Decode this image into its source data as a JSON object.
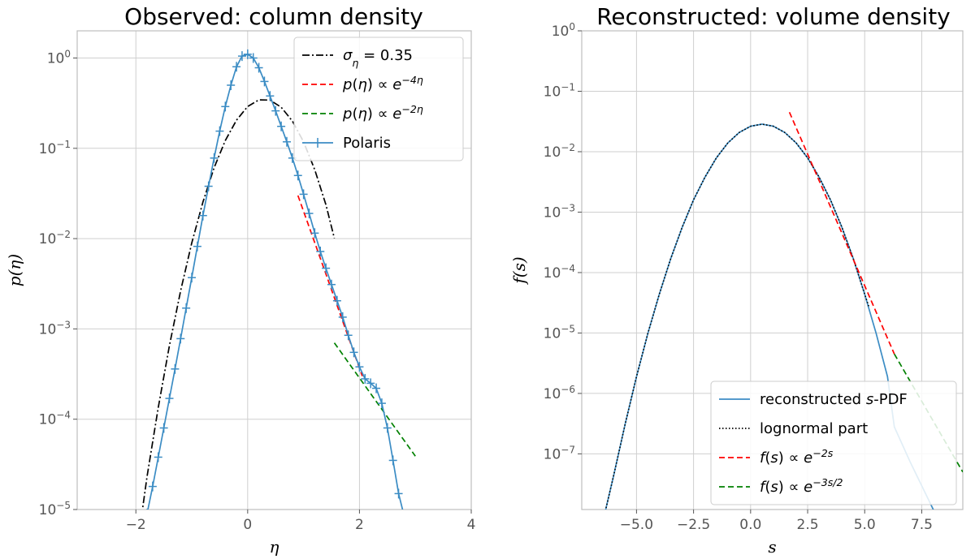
{
  "chart_data": [
    {
      "type": "line",
      "title": "Observed: column density",
      "xlabel": "η",
      "ylabel": "p(η)",
      "yscale": "log",
      "xlim": [
        -3.05,
        4.0
      ],
      "ylim": [
        1e-05,
        2.0
      ],
      "xticks": [
        -2,
        0,
        2,
        4
      ],
      "xtick_labels": [
        "−2",
        "0",
        "2",
        "4"
      ],
      "yticks": [
        1e-05,
        0.0001,
        0.001,
        0.01,
        0.1,
        1
      ],
      "ytick_labels": [
        {
          "base": "10",
          "exp": "−5"
        },
        {
          "base": "10",
          "exp": "−4"
        },
        {
          "base": "10",
          "exp": "−3"
        },
        {
          "base": "10",
          "exp": "−2"
        },
        {
          "base": "10",
          "exp": "−1"
        },
        {
          "base": "10",
          "exp": "0"
        }
      ],
      "grid": true,
      "legend_position": "top-right",
      "series": [
        {
          "name": "σ_η = 0.35",
          "legend": {
            "parts": [
              {
                "t": "σ",
                "i": true
              },
              {
                "t": "η",
                "sub": true,
                "i": true
              },
              {
                "t": " = 0.35"
              }
            ]
          },
          "style": "dashdot",
          "color": "#000000",
          "x": [
            -1.9,
            -1.8,
            -1.6,
            -1.4,
            -1.2,
            -1.0,
            -0.8,
            -0.6,
            -0.4,
            -0.2,
            0.0,
            0.2,
            0.4,
            0.6,
            0.8,
            1.0,
            1.2,
            1.4,
            1.55
          ],
          "y": [
            8.3e-06,
            2.32e-05,
            0.000135,
            0.000652,
            0.00264,
            0.00895,
            0.0255,
            0.0609,
            0.122,
            0.205,
            0.29,
            0.344,
            0.342,
            0.285,
            0.2,
            0.118,
            0.0579,
            0.0238,
            0.0101
          ]
        },
        {
          "name": "p(η) ∝ e^{−4η}",
          "legend": {
            "parts": [
              {
                "t": "p",
                "i": true
              },
              {
                "t": "("
              },
              {
                "t": "η",
                "i": true
              },
              {
                "t": ") ∝ "
              },
              {
                "t": "e",
                "i": true
              },
              {
                "t": "−4η",
                "sup": true,
                "i": true
              }
            ]
          },
          "style": "dashed",
          "color": "#ff0000",
          "x": [
            0.9,
            2.05
          ],
          "y": [
            0.03,
            0.0003
          ]
        },
        {
          "name": "p(η) ∝ e^{−2η}",
          "legend": {
            "parts": [
              {
                "t": "p",
                "i": true
              },
              {
                "t": "("
              },
              {
                "t": "η",
                "i": true
              },
              {
                "t": ") ∝ "
              },
              {
                "t": "e",
                "i": true
              },
              {
                "t": "−2η",
                "sup": true,
                "i": true
              }
            ]
          },
          "style": "dashed",
          "color": "#008000",
          "x": [
            1.55,
            3.0
          ],
          "y": [
            0.0007,
            3.9e-05
          ]
        },
        {
          "name": "Polaris",
          "legend": {
            "parts": [
              {
                "t": "Polaris"
              }
            ]
          },
          "style": "solid-errorbar",
          "color": "#3b8cc4",
          "x": [
            -1.8,
            -1.7,
            -1.6,
            -1.5,
            -1.4,
            -1.3,
            -1.2,
            -1.1,
            -1.0,
            -0.9,
            -0.8,
            -0.7,
            -0.6,
            -0.5,
            -0.4,
            -0.3,
            -0.2,
            -0.1,
            0.0,
            0.1,
            0.2,
            0.3,
            0.4,
            0.5,
            0.6,
            0.7,
            0.8,
            0.9,
            1.0,
            1.1,
            1.2,
            1.3,
            1.4,
            1.5,
            1.6,
            1.7,
            1.8,
            1.9,
            2.0,
            2.1,
            2.2,
            2.3,
            2.4,
            2.5,
            2.6,
            2.7,
            2.8
          ],
          "y": [
            9e-06,
            1.8e-05,
            3.8e-05,
            8e-05,
            0.00017,
            0.00036,
            0.00078,
            0.0017,
            0.0037,
            0.0082,
            0.018,
            0.038,
            0.078,
            0.155,
            0.29,
            0.5,
            0.8,
            1.05,
            1.1,
            1.0,
            0.78,
            0.55,
            0.38,
            0.26,
            0.175,
            0.118,
            0.078,
            0.05,
            0.031,
            0.019,
            0.0115,
            0.0072,
            0.0047,
            0.0031,
            0.00205,
            0.00135,
            0.00085,
            0.00055,
            0.00038,
            0.00028,
            0.00025,
            0.00022,
            0.00015,
            8e-05,
            3.5e-05,
            1.5e-05,
            8.5e-06
          ]
        }
      ]
    },
    {
      "type": "line",
      "title": "Reconstructed: volume density",
      "xlabel": "s",
      "ylabel": "f(s)",
      "yscale": "log",
      "xlim": [
        -7.4,
        9.3
      ],
      "ylim": [
        1.2e-08,
        1.0
      ],
      "xticks": [
        -5.0,
        -2.5,
        0.0,
        2.5,
        5.0,
        7.5
      ],
      "xtick_labels": [
        "−5.0",
        "−2.5",
        "0.0",
        "2.5",
        "5.0",
        "7.5"
      ],
      "yticks": [
        1e-07,
        1e-06,
        1e-05,
        0.0001,
        0.001,
        0.01,
        0.1,
        1
      ],
      "ytick_labels": [
        {
          "base": "10",
          "exp": "−7"
        },
        {
          "base": "10",
          "exp": "−6"
        },
        {
          "base": "10",
          "exp": "−5"
        },
        {
          "base": "10",
          "exp": "−4"
        },
        {
          "base": "10",
          "exp": "−3"
        },
        {
          "base": "10",
          "exp": "−2"
        },
        {
          "base": "10",
          "exp": "−1"
        },
        {
          "base": "10",
          "exp": "0"
        }
      ],
      "grid": true,
      "legend_position": "bottom-right",
      "series": [
        {
          "name": "reconstructed s-PDF",
          "legend": {
            "parts": [
              {
                "t": "reconstructed "
              },
              {
                "t": "s",
                "i": true
              },
              {
                "t": "-PDF"
              }
            ]
          },
          "style": "solid",
          "color": "#3b8cc4",
          "x": [
            -6.4,
            -6.0,
            -5.5,
            -5.0,
            -4.5,
            -4.0,
            -3.5,
            -3.0,
            -2.5,
            -2.0,
            -1.5,
            -1.0,
            -0.5,
            0.0,
            0.5,
            1.0,
            1.5,
            2.0,
            2.5,
            3.0,
            3.5,
            4.0,
            4.5,
            5.0,
            5.5,
            6.0,
            6.3,
            7.0,
            8.0,
            9.3
          ],
          "y": [
            1e-08,
            4.4e-08,
            3.1e-07,
            1.9e-06,
            9.9e-06,
            4.4e-05,
            0.00017,
            0.00056,
            0.0016,
            0.0038,
            0.0079,
            0.0139,
            0.0208,
            0.0264,
            0.0286,
            0.0264,
            0.0208,
            0.0139,
            0.0079,
            0.0038,
            0.0016,
            0.00056,
            0.00017,
            4.4e-05,
            9.9e-06,
            1.9e-06,
            2.8e-07,
            7.25e-08,
            1.21e-08,
            1.2e-09
          ]
        },
        {
          "name": "lognormal part",
          "legend": {
            "parts": [
              {
                "t": "lognormal part"
              }
            ]
          },
          "style": "dotted",
          "color": "#000000",
          "x": [
            -6.4,
            -6.0,
            -5.5,
            -5.0,
            -4.5,
            -4.0,
            -3.5,
            -3.0,
            -2.5,
            -2.0,
            -1.5,
            -1.0,
            -0.5,
            0.0,
            0.5,
            1.0,
            1.5,
            2.0,
            2.5,
            3.0,
            3.5,
            4.0,
            4.5,
            5.0,
            5.2
          ],
          "y": [
            1e-08,
            4.4e-08,
            3.1e-07,
            1.9e-06,
            9.9e-06,
            4.4e-05,
            0.00017,
            0.00056,
            0.0016,
            0.0038,
            0.0079,
            0.0139,
            0.0208,
            0.0264,
            0.0286,
            0.0264,
            0.0208,
            0.0139,
            0.0079,
            0.0038,
            0.0016,
            0.00056,
            0.00017,
            4.4e-05,
            2.6e-05
          ]
        },
        {
          "name": "f(s) ∝ e^{−2s}",
          "legend": {
            "parts": [
              {
                "t": "f",
                "i": true
              },
              {
                "t": "("
              },
              {
                "t": "s",
                "i": true
              },
              {
                "t": ") ∝ "
              },
              {
                "t": "e",
                "i": true
              },
              {
                "t": "−2s",
                "sup": true,
                "i": true
              }
            ]
          },
          "style": "dashed",
          "color": "#ff0000",
          "x": [
            1.7,
            6.3
          ],
          "y": [
            0.045,
            4.5e-06
          ]
        },
        {
          "name": "f(s) ∝ e^{−3s/2}",
          "legend": {
            "parts": [
              {
                "t": "f",
                "i": true
              },
              {
                "t": "("
              },
              {
                "t": "s",
                "i": true
              },
              {
                "t": ") ∝ "
              },
              {
                "t": "e",
                "i": true
              },
              {
                "t": "−3s/2",
                "sup": true,
                "i": true
              }
            ]
          },
          "style": "dashed",
          "color": "#008000",
          "x": [
            6.3,
            9.3
          ],
          "y": [
            4.5e-06,
            5e-08
          ]
        }
      ]
    }
  ]
}
